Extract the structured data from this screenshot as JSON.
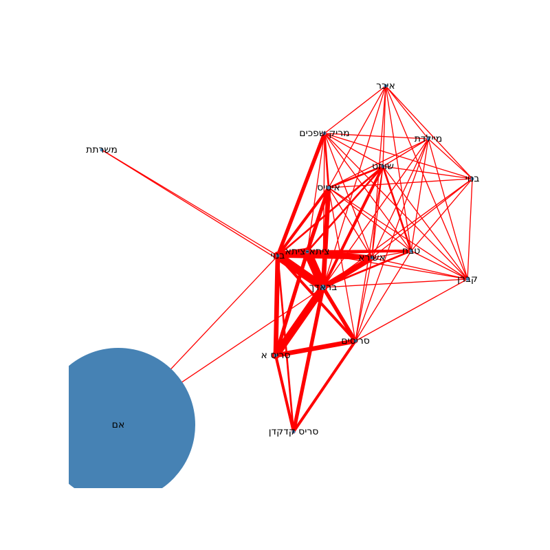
{
  "graph": {
    "node_color": "#4682b4",
    "edge_color": "#ff0000",
    "nodes": [
      {
        "id": "mother",
        "label": "אם",
        "weight": 10
      },
      {
        "id": "sris_kadkedan",
        "label": "סריס קדקדן",
        "weight": 1
      },
      {
        "id": "sris_a",
        "label": "סריס א",
        "weight": 1
      },
      {
        "id": "sarisim",
        "label": "סריסים",
        "weight": 1
      },
      {
        "id": "braadach",
        "label": "בראדך",
        "weight": 1.2
      },
      {
        "id": "bnui_left",
        "label": "בנוי",
        "weight": 1
      },
      {
        "id": "tzitha",
        "label": "ציתא-ציתא",
        "weight": 1
      },
      {
        "id": "ashira",
        "label": "אשירא",
        "weight": 1
      },
      {
        "id": "tevah",
        "label": "טבח",
        "weight": 1
      },
      {
        "id": "kavran",
        "label": "קברן",
        "weight": 1
      },
      {
        "id": "bnui_right",
        "label": "בנוי",
        "weight": 1
      },
      {
        "id": "meyaledet",
        "label": "מיילדת",
        "weight": 1
      },
      {
        "id": "ikar",
        "label": "איכר",
        "weight": 1
      },
      {
        "id": "mariak",
        "label": "מריק שפכים",
        "weight": 1
      },
      {
        "id": "shochet",
        "label": "שוחט",
        "weight": 1
      },
      {
        "id": "eitis",
        "label": "איטיס",
        "weight": 1
      },
      {
        "id": "mesharetet",
        "label": "משרתת",
        "weight": 1
      }
    ],
    "edges": [
      [
        "mother",
        "bnui_left",
        1
      ],
      [
        "mother",
        "braadach",
        1
      ],
      [
        "mesharetet",
        "bnui_left",
        1
      ],
      [
        "mesharetet",
        "braadach",
        1
      ],
      [
        "bnui_left",
        "tzitha",
        8
      ],
      [
        "bnui_left",
        "braadach",
        9
      ],
      [
        "tzitha",
        "braadach",
        9
      ],
      [
        "bnui_left",
        "sris_a",
        5
      ],
      [
        "braadach",
        "sris_a",
        8
      ],
      [
        "tzitha",
        "sris_a",
        4
      ],
      [
        "sris_a",
        "sarisim",
        5
      ],
      [
        "braadach",
        "sarisim",
        4
      ],
      [
        "bnui_left",
        "sarisim",
        3
      ],
      [
        "sris_kadkedan",
        "braadach",
        4
      ],
      [
        "sris_kadkedan",
        "sris_a",
        3
      ],
      [
        "sris_kadkedan",
        "sarisim",
        3
      ],
      [
        "sris_kadkedan",
        "bnui_left",
        2
      ],
      [
        "bnui_left",
        "mariak",
        4
      ],
      [
        "braadach",
        "eitis",
        5
      ],
      [
        "tzitha",
        "eitis",
        4
      ],
      [
        "bnui_left",
        "eitis",
        3
      ],
      [
        "braadach",
        "ashira",
        6
      ],
      [
        "tzitha",
        "ashira",
        5
      ],
      [
        "bnui_left",
        "ashira",
        4
      ],
      [
        "tzitha",
        "tevah",
        3
      ],
      [
        "braadach",
        "tevah",
        2
      ],
      [
        "braadach",
        "shochet",
        3
      ],
      [
        "bnui_left",
        "shochet",
        2
      ],
      [
        "eitis",
        "shochet",
        2
      ],
      [
        "tzitha",
        "shochet",
        2
      ],
      [
        "shochet",
        "tevah",
        2
      ],
      [
        "shochet",
        "ashira",
        1
      ],
      [
        "shochet",
        "sarisim",
        1
      ],
      [
        "eitis",
        "mariak",
        2
      ],
      [
        "mariak",
        "braadach",
        1
      ],
      [
        "mariak",
        "shochet",
        1
      ],
      [
        "mariak",
        "ashira",
        1
      ],
      [
        "mariak",
        "tevah",
        1
      ],
      [
        "mariak",
        "ikar",
        1
      ],
      [
        "mariak",
        "meyaledet",
        1
      ],
      [
        "mariak",
        "bnui_right",
        1
      ],
      [
        "mariak",
        "kavran",
        1
      ],
      [
        "ikar",
        "shochet",
        1
      ],
      [
        "ikar",
        "eitis",
        1
      ],
      [
        "ikar",
        "meyaledet",
        1
      ],
      [
        "ikar",
        "bnui_right",
        1
      ],
      [
        "ikar",
        "tevah",
        1
      ],
      [
        "ikar",
        "ashira",
        1
      ],
      [
        "ikar",
        "braadach",
        1
      ],
      [
        "ikar",
        "kavran",
        1
      ],
      [
        "meyaledet",
        "shochet",
        1
      ],
      [
        "meyaledet",
        "eitis",
        1
      ],
      [
        "meyaledet",
        "tevah",
        1
      ],
      [
        "meyaledet",
        "ashira",
        1
      ],
      [
        "meyaledet",
        "braadach",
        1
      ],
      [
        "meyaledet",
        "kavran",
        1
      ],
      [
        "meyaledet",
        "bnui_right",
        1
      ],
      [
        "meyaledet",
        "sarisim",
        1
      ],
      [
        "bnui_right",
        "shochet",
        1
      ],
      [
        "bnui_right",
        "eitis",
        1
      ],
      [
        "bnui_right",
        "tevah",
        1
      ],
      [
        "bnui_right",
        "ashira",
        1
      ],
      [
        "bnui_right",
        "kavran",
        1
      ],
      [
        "bnui_right",
        "braadach",
        1
      ],
      [
        "kavran",
        "tevah",
        1
      ],
      [
        "kavran",
        "ashira",
        1
      ],
      [
        "kavran",
        "braadach",
        1
      ],
      [
        "kavran",
        "shochet",
        1
      ],
      [
        "kavran",
        "eitis",
        1
      ],
      [
        "kavran",
        "sarisim",
        1
      ],
      [
        "tevah",
        "ashira",
        1
      ],
      [
        "tevah",
        "sarisim",
        1
      ],
      [
        "tevah",
        "eitis",
        1
      ],
      [
        "ashira",
        "eitis",
        1
      ],
      [
        "ashira",
        "sarisim",
        1
      ],
      [
        "eitis",
        "sarisim",
        1
      ],
      [
        "eitis",
        "sris_a",
        1
      ],
      [
        "shochet",
        "bnui_left",
        1
      ],
      [
        "tzitha",
        "mariak",
        1
      ],
      [
        "tzitha",
        "kavran",
        1
      ],
      [
        "bnui_left",
        "tevah",
        1
      ]
    ]
  }
}
